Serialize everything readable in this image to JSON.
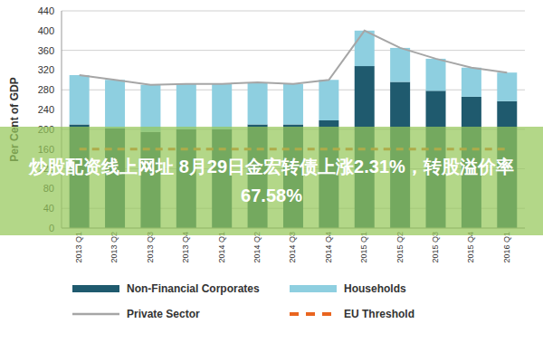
{
  "chart_data": {
    "type": "bar",
    "stacked": true,
    "grid": true,
    "legend": "bottom",
    "y_label": "Per Cent of GDP",
    "annotation": "炒股配资线上网址 8月29日金宏转债上涨2.31%，转股溢价率67.58%",
    "categories": [
      "2013 Q1",
      "2013 Q2",
      "2013 Q3",
      "2013 Q4",
      "2014 Q1",
      "2014 Q2",
      "2014 Q3",
      "2014 Q4",
      "2015 Q1",
      "2015 Q2",
      "2015 Q3",
      "2015 Q4",
      "2016 Q1"
    ],
    "ylim": [
      0,
      440
    ],
    "yticks": [
      0,
      40,
      80,
      120,
      160,
      200,
      240,
      280,
      320,
      360,
      400,
      440
    ],
    "series": [
      {
        "name": "Non-Financial Corporates",
        "type": "bar",
        "color": "#1f5a6e",
        "values": [
          210,
          202,
          195,
          200,
          200,
          210,
          210,
          218,
          328,
          296,
          278,
          266,
          257
        ]
      },
      {
        "name": "Households",
        "type": "bar",
        "color": "#8ecfe0",
        "values": [
          100,
          98,
          95,
          92,
          92,
          85,
          82,
          82,
          72,
          69,
          65,
          59,
          58
        ]
      },
      {
        "name": "Private Sector",
        "type": "line",
        "color": "#a6a6a6",
        "line_style": "solid",
        "values": [
          310,
          300,
          290,
          292,
          292,
          295,
          292,
          300,
          400,
          365,
          343,
          325,
          315
        ]
      },
      {
        "name": "EU Threshold",
        "type": "line",
        "color": "#e9651f",
        "line_style": "dashed",
        "values": [
          160,
          160,
          160,
          160,
          160,
          160,
          160,
          160,
          160,
          160,
          160,
          160,
          160
        ]
      }
    ]
  }
}
